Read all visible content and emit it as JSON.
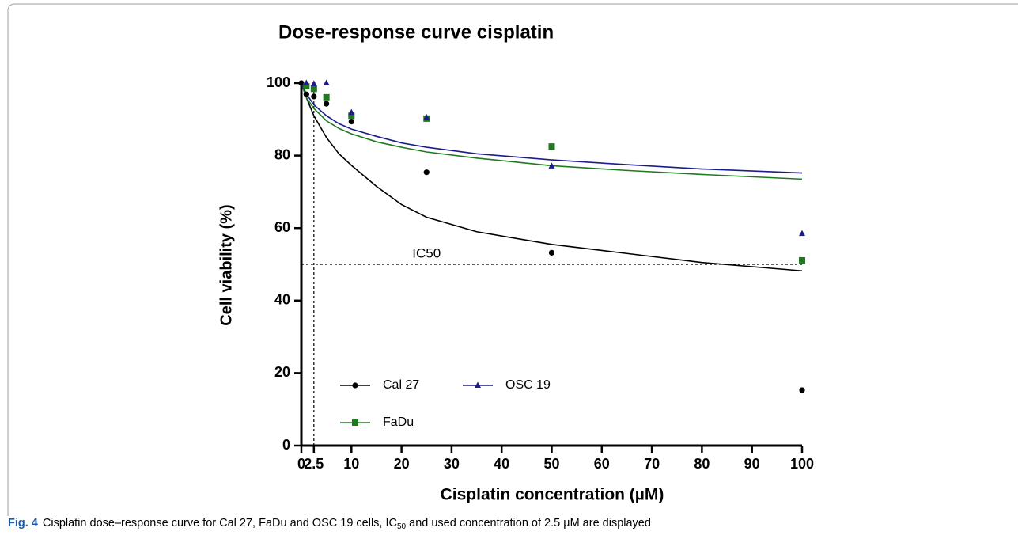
{
  "chart_data": {
    "type": "scatter",
    "title": "Dose-response curve cisplatin",
    "x_label": "Cisplatin concentration (µM)",
    "y_label": "Cell viability (%)",
    "xlim": [
      0,
      100
    ],
    "ylim": [
      0,
      100
    ],
    "xticks": [
      0,
      2.5,
      10,
      20,
      30,
      40,
      50,
      60,
      70,
      80,
      90,
      100
    ],
    "yticks": [
      0,
      20,
      40,
      60,
      80,
      100
    ],
    "series": [
      {
        "name": "Cal 27",
        "color": "#000000",
        "marker": "circle",
        "x": [
          0,
          1,
          2.5,
          5,
          10,
          25,
          50,
          100
        ],
        "values": [
          100,
          96.9,
          96.3,
          94.3,
          89.4,
          75.4,
          53.2,
          15.3
        ],
        "fit": {
          "x": [
            0,
            1,
            2.5,
            5,
            7.5,
            10,
            15,
            20,
            25,
            35,
            50,
            65,
            80,
            100
          ],
          "values": [
            100,
            96,
            91,
            85,
            80.5,
            77.3,
            71.5,
            66.5,
            63,
            59,
            55.5,
            53,
            50.5,
            48.2
          ]
        }
      },
      {
        "name": "FaDu",
        "color": "#1f7a1f",
        "marker": "square",
        "x": [
          1,
          2.5,
          5,
          10,
          25,
          50,
          100
        ],
        "values": [
          99.1,
          98.4,
          96.1,
          91.0,
          90.2,
          82.5,
          51.1
        ],
        "fit": {
          "x": [
            0,
            1,
            2.5,
            5,
            7.5,
            10,
            15,
            20,
            25,
            35,
            50,
            65,
            80,
            100
          ],
          "values": [
            100,
            96,
            93,
            89.6,
            87.5,
            86,
            83.8,
            82.3,
            81,
            79.3,
            77.2,
            75.9,
            74.8,
            73.5
          ]
        }
      },
      {
        "name": "OSC 19",
        "color": "#1c1c8a",
        "marker": "triangle",
        "x": [
          1,
          2.5,
          5,
          10,
          25,
          50,
          100
        ],
        "values": [
          100,
          99.8,
          100,
          91.9,
          90.5,
          77.1,
          58.5
        ],
        "fit": {
          "x": [
            0,
            1,
            2.5,
            5,
            7.5,
            10,
            15,
            20,
            25,
            35,
            50,
            65,
            80,
            100
          ],
          "values": [
            100,
            97,
            94,
            91,
            88.8,
            87.3,
            85.3,
            83.5,
            82.3,
            80.5,
            78.8,
            77.5,
            76.3,
            75.2
          ]
        }
      }
    ],
    "annotations": {
      "ic50_label": "IC50",
      "ic50_y": 50,
      "used_x": 2.5
    }
  },
  "caption": {
    "label": "Fig. 4",
    "parts": [
      "Cisplatin dose–response curve for Cal 27, FaDu and OSC 19 cells, IC",
      "50",
      " and used concentration of 2.5 µM are displayed"
    ]
  }
}
